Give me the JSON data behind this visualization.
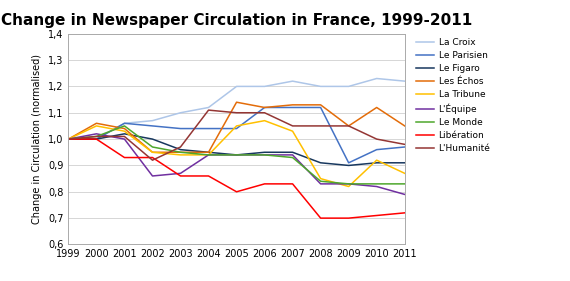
{
  "title": "Change in Newspaper Circulation in France, 1999-2011",
  "ylabel": "Change in Circulation (normalised)",
  "years": [
    1999,
    2000,
    2001,
    2002,
    2003,
    2004,
    2005,
    2006,
    2007,
    2008,
    2009,
    2010,
    2011
  ],
  "ylim": [
    0.6,
    1.4
  ],
  "yticks": [
    0.6,
    0.7,
    0.8,
    0.9,
    1.0,
    1.1,
    1.2,
    1.3,
    1.4
  ],
  "series": [
    {
      "name": "La Croix",
      "color": "#aec6e8",
      "values": [
        1.0,
        1.0,
        1.06,
        1.07,
        1.1,
        1.12,
        1.2,
        1.2,
        1.22,
        1.2,
        1.2,
        1.23,
        1.22
      ]
    },
    {
      "name": "Le Parisien",
      "color": "#4472c4",
      "values": [
        1.0,
        1.0,
        1.06,
        1.05,
        1.04,
        1.04,
        1.04,
        1.12,
        1.12,
        1.12,
        0.91,
        0.96,
        0.97
      ]
    },
    {
      "name": "Le Figaro",
      "color": "#17375e",
      "values": [
        1.0,
        1.0,
        1.02,
        1.0,
        0.96,
        0.95,
        0.94,
        0.95,
        0.95,
        0.91,
        0.9,
        0.91,
        0.91
      ]
    },
    {
      "name": "Les Échos",
      "color": "#e36c09",
      "values": [
        1.0,
        1.06,
        1.04,
        0.95,
        0.95,
        0.95,
        1.14,
        1.12,
        1.13,
        1.13,
        1.05,
        1.12,
        1.05
      ]
    },
    {
      "name": "La Tribune",
      "color": "#ffc000",
      "values": [
        1.0,
        1.05,
        1.03,
        0.95,
        0.94,
        0.94,
        1.05,
        1.07,
        1.03,
        0.85,
        0.82,
        0.92,
        0.87
      ]
    },
    {
      "name": "L'Équipe",
      "color": "#7030a0",
      "values": [
        1.0,
        1.02,
        1.0,
        0.86,
        0.87,
        0.94,
        0.94,
        0.94,
        0.94,
        0.83,
        0.83,
        0.82,
        0.79
      ]
    },
    {
      "name": "Le Monde",
      "color": "#4ea72c",
      "values": [
        1.0,
        1.01,
        1.05,
        0.97,
        0.95,
        0.94,
        0.94,
        0.94,
        0.93,
        0.84,
        0.83,
        0.83,
        0.83
      ]
    },
    {
      "name": "Libération",
      "color": "#ff0000",
      "values": [
        1.0,
        1.0,
        0.93,
        0.93,
        0.86,
        0.86,
        0.8,
        0.83,
        0.83,
        0.7,
        0.7,
        0.71,
        0.72
      ]
    },
    {
      "name": "L'Humanité",
      "color": "#943634",
      "values": [
        1.0,
        1.01,
        1.01,
        0.92,
        0.97,
        1.11,
        1.1,
        1.1,
        1.05,
        1.05,
        1.05,
        1.0,
        0.98
      ]
    }
  ],
  "figsize": [
    5.7,
    2.81
  ],
  "dpi": 100,
  "title_fontsize": 11,
  "tick_fontsize": 7,
  "ylabel_fontsize": 7,
  "legend_fontsize": 6.5,
  "background_color": "#ffffff"
}
